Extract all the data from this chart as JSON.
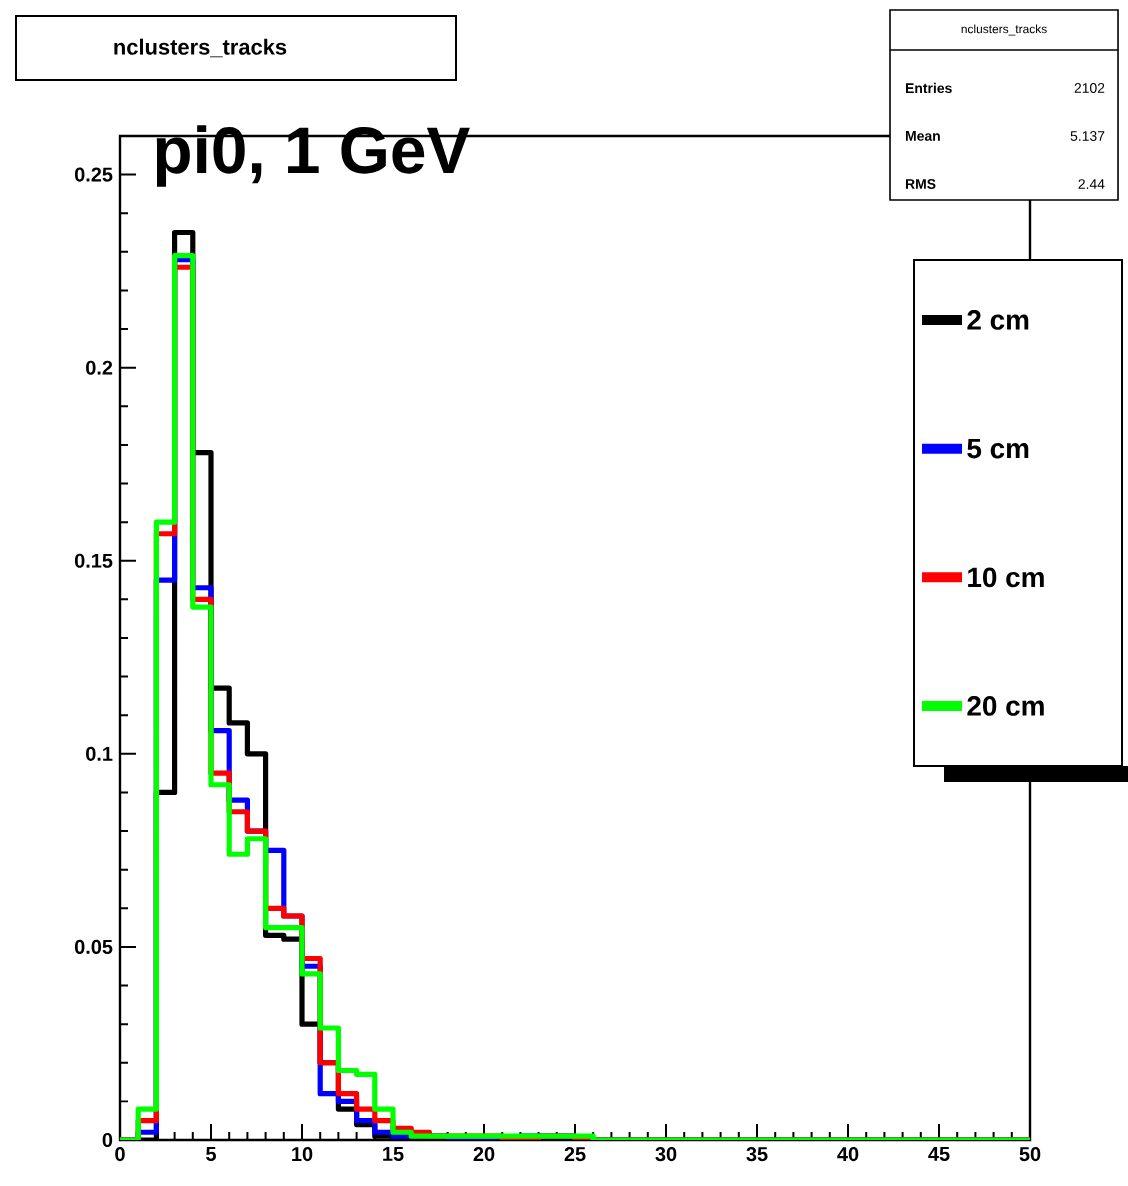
{
  "chart_data": {
    "type": "histogram",
    "title": "nclusters_tracks",
    "annotations": [
      "pi0, 1 GeV",
      "nclusters_tracks",
      "Entries",
      "2102",
      "Mean",
      "5.137",
      "RMS",
      "2.44"
    ],
    "bins": [
      0,
      1,
      2,
      3,
      4,
      5,
      6,
      7,
      8,
      9,
      10,
      11,
      12,
      13,
      14,
      15,
      16,
      17,
      18,
      19,
      20,
      21,
      22,
      23,
      24,
      25,
      26,
      27,
      28,
      29,
      30,
      31,
      32,
      33,
      34,
      35,
      36,
      37,
      38,
      39,
      40,
      41,
      42,
      43,
      44,
      45,
      46,
      47,
      48,
      49,
      50
    ],
    "series": [
      {
        "name": "2 cm",
        "color": "#000000",
        "values": [
          0,
          0,
          0.09,
          0.235,
          0.178,
          0.117,
          0.108,
          0.1,
          0.053,
          0.052,
          0.03,
          0.02,
          0.008,
          0.004,
          0.001,
          0,
          0,
          0,
          0,
          0,
          0,
          0,
          0,
          0,
          0,
          0,
          0,
          0,
          0,
          0,
          0,
          0,
          0,
          0,
          0,
          0,
          0,
          0,
          0,
          0,
          0,
          0,
          0,
          0,
          0,
          0,
          0,
          0,
          0,
          0
        ]
      },
      {
        "name": "5 cm",
        "color": "#0000ff",
        "values": [
          0,
          0.002,
          0.145,
          0.228,
          0.143,
          0.106,
          0.088,
          0.08,
          0.075,
          0.058,
          0.045,
          0.012,
          0.01,
          0.005,
          0.002,
          0.001,
          0.001,
          0.001,
          0,
          0,
          0,
          0,
          0.001,
          0.001,
          0.001,
          0,
          0,
          0,
          0,
          0,
          0,
          0,
          0,
          0,
          0,
          0,
          0,
          0,
          0,
          0,
          0,
          0,
          0,
          0,
          0,
          0,
          0,
          0,
          0,
          0
        ]
      },
      {
        "name": "10 cm",
        "color": "#ff0000",
        "values": [
          0,
          0.005,
          0.157,
          0.226,
          0.14,
          0.095,
          0.085,
          0.08,
          0.06,
          0.058,
          0.047,
          0.02,
          0.012,
          0.008,
          0.005,
          0.003,
          0.002,
          0.001,
          0.001,
          0.001,
          0.001,
          0,
          0,
          0.001,
          0.001,
          0,
          0,
          0,
          0,
          0,
          0,
          0,
          0,
          0,
          0,
          0,
          0,
          0,
          0,
          0,
          0,
          0,
          0,
          0,
          0,
          0,
          0,
          0,
          0,
          0
        ]
      },
      {
        "name": "20 cm",
        "color": "#00ff00",
        "values": [
          0,
          0.008,
          0.16,
          0.229,
          0.138,
          0.092,
          0.074,
          0.078,
          0.055,
          0.055,
          0.043,
          0.029,
          0.018,
          0.017,
          0.008,
          0.002,
          0.001,
          0.001,
          0.001,
          0.001,
          0.001,
          0.001,
          0.001,
          0.001,
          0.001,
          0.001,
          0,
          0,
          0,
          0,
          0,
          0,
          0,
          0,
          0,
          0,
          0,
          0,
          0,
          0,
          0,
          0,
          0,
          0,
          0,
          0,
          0,
          0,
          0,
          0
        ]
      }
    ],
    "xlim": [
      0,
      50
    ],
    "ylim": [
      0,
      0.26
    ],
    "xticks": [
      0,
      5,
      10,
      15,
      20,
      25,
      30,
      35,
      40,
      45,
      50
    ],
    "yticks": [
      0,
      0.05,
      0.1,
      0.15,
      0.2,
      0.25
    ],
    "legend": "top right"
  }
}
